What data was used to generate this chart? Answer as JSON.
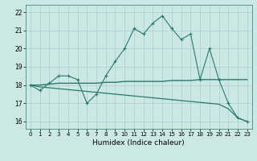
{
  "xlabel": "Humidex (Indice chaleur)",
  "x": [
    0,
    1,
    2,
    3,
    4,
    5,
    6,
    7,
    8,
    9,
    10,
    11,
    12,
    13,
    14,
    15,
    16,
    17,
    18,
    19,
    20,
    21,
    22,
    23
  ],
  "line1": [
    18.0,
    17.7,
    18.1,
    18.5,
    18.5,
    18.3,
    17.0,
    17.5,
    18.5,
    19.3,
    20.0,
    21.1,
    20.8,
    21.4,
    21.8,
    21.1,
    20.5,
    20.8,
    18.3,
    20.0,
    18.3,
    17.0,
    16.2,
    16.0
  ],
  "line2": [
    18.0,
    18.0,
    18.05,
    18.1,
    18.1,
    18.1,
    18.1,
    18.1,
    18.15,
    18.15,
    18.2,
    18.2,
    18.2,
    18.2,
    18.2,
    18.25,
    18.25,
    18.25,
    18.3,
    18.3,
    18.3,
    18.3,
    18.3,
    18.3
  ],
  "line3": [
    18.0,
    17.9,
    17.85,
    17.8,
    17.75,
    17.7,
    17.65,
    17.6,
    17.55,
    17.5,
    17.45,
    17.4,
    17.35,
    17.3,
    17.25,
    17.2,
    17.15,
    17.1,
    17.05,
    17.0,
    16.95,
    16.7,
    16.2,
    16.0
  ],
  "ylim": [
    15.6,
    22.4
  ],
  "xlim": [
    -0.5,
    23.5
  ],
  "yticks": [
    16,
    17,
    18,
    19,
    20,
    21,
    22
  ],
  "xticks": [
    0,
    1,
    2,
    3,
    4,
    5,
    6,
    7,
    8,
    9,
    10,
    11,
    12,
    13,
    14,
    15,
    16,
    17,
    18,
    19,
    20,
    21,
    22,
    23
  ],
  "line_color": "#2a7a6a",
  "bg_color": "#cce8e4",
  "grid_color": "#aacfcb"
}
